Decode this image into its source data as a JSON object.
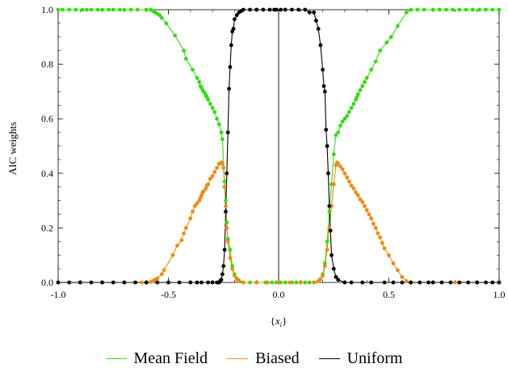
{
  "chart_data": {
    "type": "line",
    "title": "",
    "xlabel": "{x_i}",
    "ylabel": "AIC weights",
    "xlim": [
      -1.0,
      1.0
    ],
    "ylim": [
      0.0,
      1.0
    ],
    "x_ticks": [
      "-1.0",
      "-0.5",
      "0.0",
      "0.5",
      "1.0"
    ],
    "y_ticks": [
      "0.0",
      "0.2",
      "0.4",
      "0.6",
      "0.8",
      "1.0"
    ],
    "grid": false,
    "legend_position": "bottom",
    "series": [
      {
        "name": "Mean Field",
        "color": "#33dd11",
        "points": [
          [
            -1.0,
            1.0
          ],
          [
            -0.98,
            1.0
          ],
          [
            -0.95,
            1.0
          ],
          [
            -0.92,
            1.0
          ],
          [
            -0.89,
            1.0
          ],
          [
            -0.87,
            1.0
          ],
          [
            -0.85,
            1.0
          ],
          [
            -0.82,
            1.0
          ],
          [
            -0.8,
            1.0
          ],
          [
            -0.77,
            1.0
          ],
          [
            -0.75,
            1.0
          ],
          [
            -0.72,
            1.0
          ],
          [
            -0.7,
            1.0
          ],
          [
            -0.67,
            1.0
          ],
          [
            -0.64,
            1.0
          ],
          [
            -0.6,
            1.0
          ],
          [
            -0.58,
            1.0
          ],
          [
            -0.57,
            0.995
          ],
          [
            -0.56,
            0.99
          ],
          [
            -0.55,
            0.985
          ],
          [
            -0.54,
            0.98
          ],
          [
            -0.53,
            0.97
          ],
          [
            -0.51,
            0.95
          ],
          [
            -0.47,
            0.905
          ],
          [
            -0.43,
            0.85
          ],
          [
            -0.42,
            0.82
          ],
          [
            -0.39,
            0.78
          ],
          [
            -0.37,
            0.75
          ],
          [
            -0.36,
            0.735
          ],
          [
            -0.355,
            0.72
          ],
          [
            -0.35,
            0.715
          ],
          [
            -0.345,
            0.705
          ],
          [
            -0.34,
            0.7
          ],
          [
            -0.335,
            0.695
          ],
          [
            -0.33,
            0.685
          ],
          [
            -0.325,
            0.68
          ],
          [
            -0.32,
            0.67
          ],
          [
            -0.31,
            0.655
          ],
          [
            -0.3,
            0.64
          ],
          [
            -0.29,
            0.625
          ],
          [
            -0.28,
            0.6
          ],
          [
            -0.27,
            0.58
          ],
          [
            -0.26,
            0.55
          ],
          [
            -0.255,
            0.525
          ],
          [
            -0.245,
            0.37
          ],
          [
            -0.24,
            0.3
          ],
          [
            -0.235,
            0.22
          ],
          [
            -0.23,
            0.16
          ],
          [
            -0.22,
            0.12
          ],
          [
            -0.21,
            0.06
          ],
          [
            -0.2,
            0.03
          ],
          [
            -0.19,
            0.015
          ],
          [
            -0.18,
            0.008
          ],
          [
            -0.16,
            0.0
          ],
          [
            -0.13,
            0.0
          ],
          [
            -0.1,
            0.0
          ],
          [
            -0.06,
            0.0
          ],
          [
            -0.03,
            0.0
          ],
          [
            -0.01,
            0.0
          ],
          [
            0.01,
            0.0
          ],
          [
            0.03,
            0.0
          ],
          [
            0.06,
            0.0
          ],
          [
            0.08,
            0.0
          ],
          [
            0.1,
            0.0
          ],
          [
            0.12,
            0.0
          ],
          [
            0.14,
            0.0
          ],
          [
            0.16,
            0.0
          ],
          [
            0.18,
            0.005
          ],
          [
            0.19,
            0.012
          ],
          [
            0.2,
            0.03
          ],
          [
            0.21,
            0.07
          ],
          [
            0.22,
            0.15
          ],
          [
            0.23,
            0.26
          ],
          [
            0.24,
            0.36
          ],
          [
            0.25,
            0.47
          ],
          [
            0.26,
            0.54
          ],
          [
            0.27,
            0.55
          ],
          [
            0.28,
            0.575
          ],
          [
            0.29,
            0.59
          ],
          [
            0.3,
            0.6
          ],
          [
            0.31,
            0.61
          ],
          [
            0.32,
            0.625
          ],
          [
            0.33,
            0.64
          ],
          [
            0.34,
            0.655
          ],
          [
            0.35,
            0.67
          ],
          [
            0.355,
            0.68
          ],
          [
            0.36,
            0.69
          ],
          [
            0.37,
            0.705
          ],
          [
            0.38,
            0.72
          ],
          [
            0.39,
            0.735
          ],
          [
            0.4,
            0.75
          ],
          [
            0.42,
            0.78
          ],
          [
            0.44,
            0.81
          ],
          [
            0.46,
            0.85
          ],
          [
            0.49,
            0.88
          ],
          [
            0.51,
            0.9
          ],
          [
            0.54,
            0.94
          ],
          [
            0.58,
            0.99
          ],
          [
            0.6,
            1.0
          ],
          [
            0.63,
            1.0
          ],
          [
            0.66,
            1.0
          ],
          [
            0.7,
            1.0
          ],
          [
            0.73,
            1.0
          ],
          [
            0.76,
            1.0
          ],
          [
            0.79,
            1.0
          ],
          [
            0.82,
            1.0
          ],
          [
            0.85,
            1.0
          ],
          [
            0.88,
            1.0
          ],
          [
            0.91,
            1.0
          ],
          [
            0.94,
            1.0
          ],
          [
            0.97,
            1.0
          ],
          [
            1.0,
            1.0
          ]
        ]
      },
      {
        "name": "Biased",
        "color": "#f08a10",
        "points": [
          [
            -1.0,
            0.0
          ],
          [
            -0.9,
            0.0
          ],
          [
            -0.8,
            0.0
          ],
          [
            -0.7,
            0.0
          ],
          [
            -0.62,
            0.0
          ],
          [
            -0.6,
            0.0
          ],
          [
            -0.58,
            0.002
          ],
          [
            -0.57,
            0.005
          ],
          [
            -0.56,
            0.01
          ],
          [
            -0.55,
            0.015
          ],
          [
            -0.53,
            0.03
          ],
          [
            -0.52,
            0.045
          ],
          [
            -0.48,
            0.1
          ],
          [
            -0.46,
            0.135
          ],
          [
            -0.44,
            0.155
          ],
          [
            -0.43,
            0.18
          ],
          [
            -0.42,
            0.2
          ],
          [
            -0.4,
            0.235
          ],
          [
            -0.39,
            0.26
          ],
          [
            -0.38,
            0.28
          ],
          [
            -0.37,
            0.29
          ],
          [
            -0.36,
            0.3
          ],
          [
            -0.355,
            0.31
          ],
          [
            -0.35,
            0.32
          ],
          [
            -0.345,
            0.33
          ],
          [
            -0.34,
            0.335
          ],
          [
            -0.33,
            0.345
          ],
          [
            -0.325,
            0.355
          ],
          [
            -0.32,
            0.36
          ],
          [
            -0.31,
            0.38
          ],
          [
            -0.3,
            0.39
          ],
          [
            -0.29,
            0.405
          ],
          [
            -0.28,
            0.42
          ],
          [
            -0.27,
            0.435
          ],
          [
            -0.26,
            0.44
          ],
          [
            -0.255,
            0.435
          ],
          [
            -0.25,
            0.42
          ],
          [
            -0.245,
            0.35
          ],
          [
            -0.24,
            0.28
          ],
          [
            -0.235,
            0.2
          ],
          [
            -0.23,
            0.15
          ],
          [
            -0.22,
            0.09
          ],
          [
            -0.21,
            0.05
          ],
          [
            -0.2,
            0.025
          ],
          [
            -0.19,
            0.012
          ],
          [
            -0.18,
            0.005
          ],
          [
            -0.16,
            0.0
          ],
          [
            -0.1,
            0.0
          ],
          [
            -0.05,
            0.0
          ],
          [
            0.0,
            0.0
          ],
          [
            0.05,
            0.0
          ],
          [
            0.1,
            0.0
          ],
          [
            0.16,
            0.0
          ],
          [
            0.18,
            0.005
          ],
          [
            0.19,
            0.012
          ],
          [
            0.2,
            0.025
          ],
          [
            0.21,
            0.06
          ],
          [
            0.22,
            0.12
          ],
          [
            0.23,
            0.2
          ],
          [
            0.24,
            0.28
          ],
          [
            0.25,
            0.36
          ],
          [
            0.26,
            0.43
          ],
          [
            0.265,
            0.44
          ],
          [
            0.27,
            0.435
          ],
          [
            0.28,
            0.425
          ],
          [
            0.29,
            0.415
          ],
          [
            0.3,
            0.4
          ],
          [
            0.31,
            0.385
          ],
          [
            0.32,
            0.37
          ],
          [
            0.33,
            0.355
          ],
          [
            0.34,
            0.345
          ],
          [
            0.35,
            0.33
          ],
          [
            0.36,
            0.32
          ],
          [
            0.37,
            0.305
          ],
          [
            0.38,
            0.295
          ],
          [
            0.39,
            0.28
          ],
          [
            0.4,
            0.265
          ],
          [
            0.41,
            0.25
          ],
          [
            0.42,
            0.235
          ],
          [
            0.43,
            0.215
          ],
          [
            0.44,
            0.2
          ],
          [
            0.45,
            0.18
          ],
          [
            0.46,
            0.165
          ],
          [
            0.47,
            0.145
          ],
          [
            0.48,
            0.125
          ],
          [
            0.5,
            0.1
          ],
          [
            0.52,
            0.07
          ],
          [
            0.54,
            0.045
          ],
          [
            0.56,
            0.02
          ],
          [
            0.58,
            0.005
          ],
          [
            0.6,
            0.0
          ],
          [
            0.7,
            0.0
          ],
          [
            0.8,
            0.0
          ],
          [
            0.9,
            0.0
          ],
          [
            1.0,
            0.0
          ]
        ]
      },
      {
        "name": "Uniform",
        "color": "#000000",
        "points": [
          [
            -1.0,
            0.0
          ],
          [
            -0.95,
            0.0
          ],
          [
            -0.9,
            0.0
          ],
          [
            -0.85,
            0.0
          ],
          [
            -0.8,
            0.0
          ],
          [
            -0.75,
            0.0
          ],
          [
            -0.7,
            0.0
          ],
          [
            -0.65,
            0.0
          ],
          [
            -0.6,
            0.0
          ],
          [
            -0.55,
            0.0
          ],
          [
            -0.5,
            0.0
          ],
          [
            -0.45,
            0.0
          ],
          [
            -0.4,
            0.0
          ],
          [
            -0.37,
            0.0
          ],
          [
            -0.35,
            0.0
          ],
          [
            -0.32,
            0.0
          ],
          [
            -0.3,
            0.0
          ],
          [
            -0.28,
            0.0
          ],
          [
            -0.27,
            0.0
          ],
          [
            -0.265,
            0.005
          ],
          [
            -0.26,
            0.01
          ],
          [
            -0.255,
            0.03
          ],
          [
            -0.25,
            0.06
          ],
          [
            -0.245,
            0.12
          ],
          [
            -0.24,
            0.26
          ],
          [
            -0.235,
            0.4
          ],
          [
            -0.23,
            0.55
          ],
          [
            -0.225,
            0.71
          ],
          [
            -0.22,
            0.79
          ],
          [
            -0.215,
            0.87
          ],
          [
            -0.21,
            0.92
          ],
          [
            -0.205,
            0.93
          ],
          [
            -0.2,
            0.965
          ],
          [
            -0.19,
            0.98
          ],
          [
            -0.18,
            0.99
          ],
          [
            -0.17,
            0.995
          ],
          [
            -0.16,
            1.0
          ],
          [
            -0.13,
            1.0
          ],
          [
            -0.1,
            1.0
          ],
          [
            -0.07,
            1.0
          ],
          [
            -0.04,
            1.0
          ],
          [
            -0.02,
            1.0
          ],
          [
            -0.01,
            1.0
          ],
          [
            0.01,
            1.0
          ],
          [
            0.03,
            1.0
          ],
          [
            0.06,
            1.0
          ],
          [
            0.09,
            1.0
          ],
          [
            0.12,
            1.0
          ],
          [
            0.14,
            0.99
          ],
          [
            0.16,
            0.99
          ],
          [
            0.17,
            0.96
          ],
          [
            0.18,
            0.93
          ],
          [
            0.19,
            0.87
          ],
          [
            0.2,
            0.78
          ],
          [
            0.205,
            0.72
          ],
          [
            0.21,
            0.7
          ],
          [
            0.215,
            0.56
          ],
          [
            0.22,
            0.5
          ],
          [
            0.225,
            0.4
          ],
          [
            0.23,
            0.28
          ],
          [
            0.235,
            0.19
          ],
          [
            0.24,
            0.1
          ],
          [
            0.25,
            0.05
          ],
          [
            0.26,
            0.02
          ],
          [
            0.27,
            0.01
          ],
          [
            0.3,
            0.0
          ],
          [
            0.33,
            0.0
          ],
          [
            0.38,
            0.0
          ],
          [
            0.42,
            0.0
          ],
          [
            0.48,
            0.0
          ],
          [
            0.52,
            0.0
          ],
          [
            0.56,
            0.0
          ],
          [
            0.6,
            0.0
          ],
          [
            0.64,
            0.0
          ],
          [
            0.68,
            0.0
          ],
          [
            0.7,
            0.0
          ],
          [
            0.74,
            0.0
          ],
          [
            0.78,
            0.0
          ],
          [
            0.82,
            0.0
          ],
          [
            0.86,
            0.0
          ],
          [
            0.9,
            0.0
          ],
          [
            0.94,
            0.0
          ],
          [
            0.97,
            0.0
          ],
          [
            1.0,
            0.0
          ]
        ]
      }
    ]
  }
}
